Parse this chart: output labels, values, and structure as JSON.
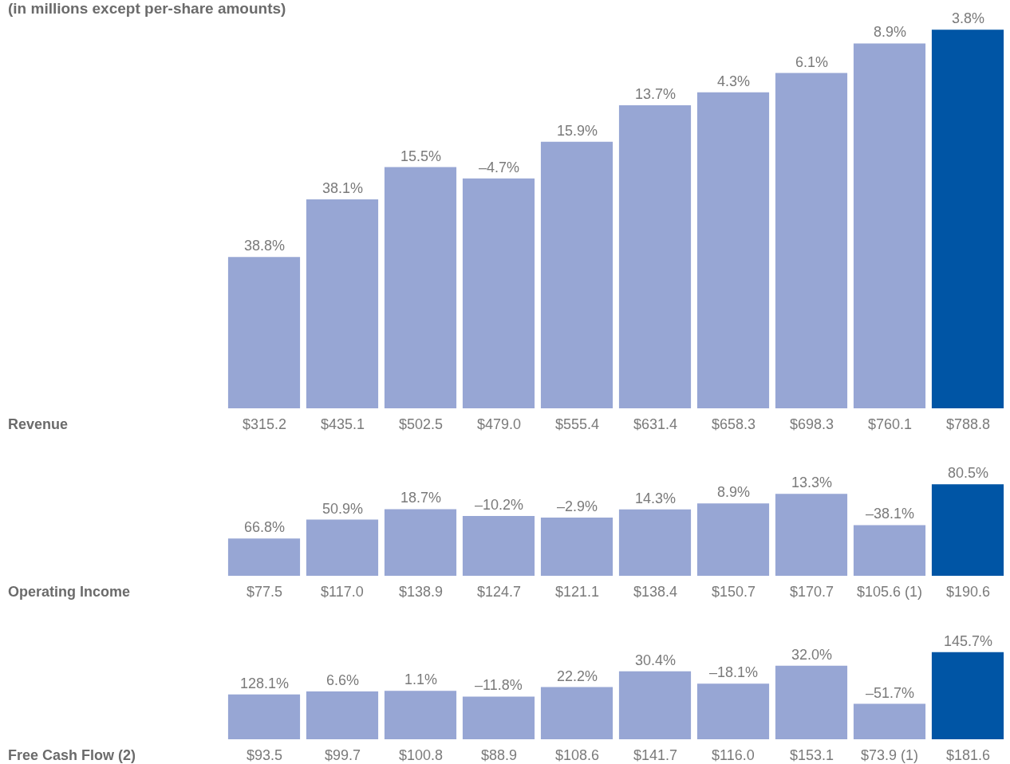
{
  "chart_data": [
    {
      "type": "bar",
      "subtitle": "(in millions except per-share amounts)",
      "ylabel": "Revenue",
      "categories": [
        null,
        null,
        null,
        null,
        null,
        null,
        null,
        null,
        null,
        null
      ],
      "values": [
        315.2,
        435.1,
        502.5,
        479.0,
        555.4,
        631.4,
        658.3,
        698.3,
        760.1,
        788.8
      ],
      "value_labels": [
        "$315.2",
        "$435.1",
        "$502.5",
        "$479.0",
        "$555.4",
        "$631.4",
        "$658.3",
        "$698.3",
        "$760.1",
        "$788.8"
      ],
      "colors": [
        "#97a6d4",
        "#97a6d4",
        "#97a6d4",
        "#97a6d4",
        "#97a6d4",
        "#97a6d4",
        "#97a6d4",
        "#97a6d4",
        "#97a6d4",
        "#0055a5"
      ],
      "annotations": [
        "38.8%",
        "38.1%",
        "15.5%",
        "–4.7%",
        "15.9%",
        "13.7%",
        "4.3%",
        "6.1%",
        "8.9%",
        "3.8%"
      ]
    },
    {
      "type": "bar",
      "ylabel": "Operating Income",
      "categories": [
        null,
        null,
        null,
        null,
        null,
        null,
        null,
        null,
        null,
        null
      ],
      "values": [
        77.5,
        117.0,
        138.9,
        124.7,
        121.1,
        138.4,
        150.7,
        170.7,
        105.6,
        190.6
      ],
      "value_labels": [
        "$77.5",
        "$117.0",
        "$138.9",
        "$124.7",
        "$121.1",
        "$138.4",
        "$150.7",
        "$170.7",
        "$105.6 (1)",
        "$190.6"
      ],
      "colors": [
        "#97a6d4",
        "#97a6d4",
        "#97a6d4",
        "#97a6d4",
        "#97a6d4",
        "#97a6d4",
        "#97a6d4",
        "#97a6d4",
        "#97a6d4",
        "#0055a5"
      ],
      "annotations": [
        "66.8%",
        "50.9%",
        "18.7%",
        "–10.2%",
        "–2.9%",
        "14.3%",
        "8.9%",
        "13.3%",
        "–38.1%",
        "80.5%"
      ]
    },
    {
      "type": "bar",
      "ylabel": "Free Cash Flow (2)",
      "categories": [
        null,
        null,
        null,
        null,
        null,
        null,
        null,
        null,
        null,
        null
      ],
      "values": [
        93.5,
        99.7,
        100.8,
        88.9,
        108.6,
        141.7,
        116.0,
        153.1,
        73.9,
        181.6
      ],
      "value_labels": [
        "$93.5",
        "$99.7",
        "$100.8",
        "$88.9",
        "$108.6",
        "$141.7",
        "$116.0",
        "$153.1",
        "$73.9 (1)",
        "$181.6"
      ],
      "colors": [
        "#97a6d4",
        "#97a6d4",
        "#97a6d4",
        "#97a6d4",
        "#97a6d4",
        "#97a6d4",
        "#97a6d4",
        "#97a6d4",
        "#97a6d4",
        "#0055a5"
      ],
      "annotations": [
        "128.1%",
        "6.6%",
        "1.1%",
        "–11.8%",
        "22.2%",
        "30.4%",
        "–18.1%",
        "32.0%",
        "–51.7%",
        "145.7%"
      ]
    }
  ]
}
